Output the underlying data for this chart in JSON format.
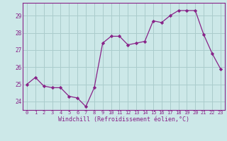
{
  "x": [
    0,
    1,
    2,
    3,
    4,
    5,
    6,
    7,
    8,
    9,
    10,
    11,
    12,
    13,
    14,
    15,
    16,
    17,
    18,
    19,
    20,
    21,
    22,
    23
  ],
  "y": [
    25.0,
    25.4,
    24.9,
    24.8,
    24.8,
    24.3,
    24.2,
    23.7,
    24.8,
    27.4,
    27.8,
    27.8,
    27.3,
    27.4,
    27.5,
    28.7,
    28.6,
    29.0,
    29.3,
    29.3,
    29.3,
    27.9,
    26.8,
    25.9
  ],
  "line_color": "#882288",
  "marker": "D",
  "marker_size": 2.2,
  "bg_color": "#cce8e8",
  "grid_color": "#aacccc",
  "xlabel": "Windchill (Refroidissement éolien,°C)",
  "ylim": [
    23.5,
    29.75
  ],
  "xlim": [
    -0.5,
    23.5
  ],
  "yticks": [
    24,
    25,
    26,
    27,
    28,
    29
  ],
  "xticks": [
    0,
    1,
    2,
    3,
    4,
    5,
    6,
    7,
    8,
    9,
    10,
    11,
    12,
    13,
    14,
    15,
    16,
    17,
    18,
    19,
    20,
    21,
    22,
    23
  ],
  "tick_color": "#882288",
  "label_color": "#882288",
  "spine_color": "#882288",
  "xtick_fontsize": 5.0,
  "ytick_fontsize": 5.5,
  "xlabel_fontsize": 6.0
}
